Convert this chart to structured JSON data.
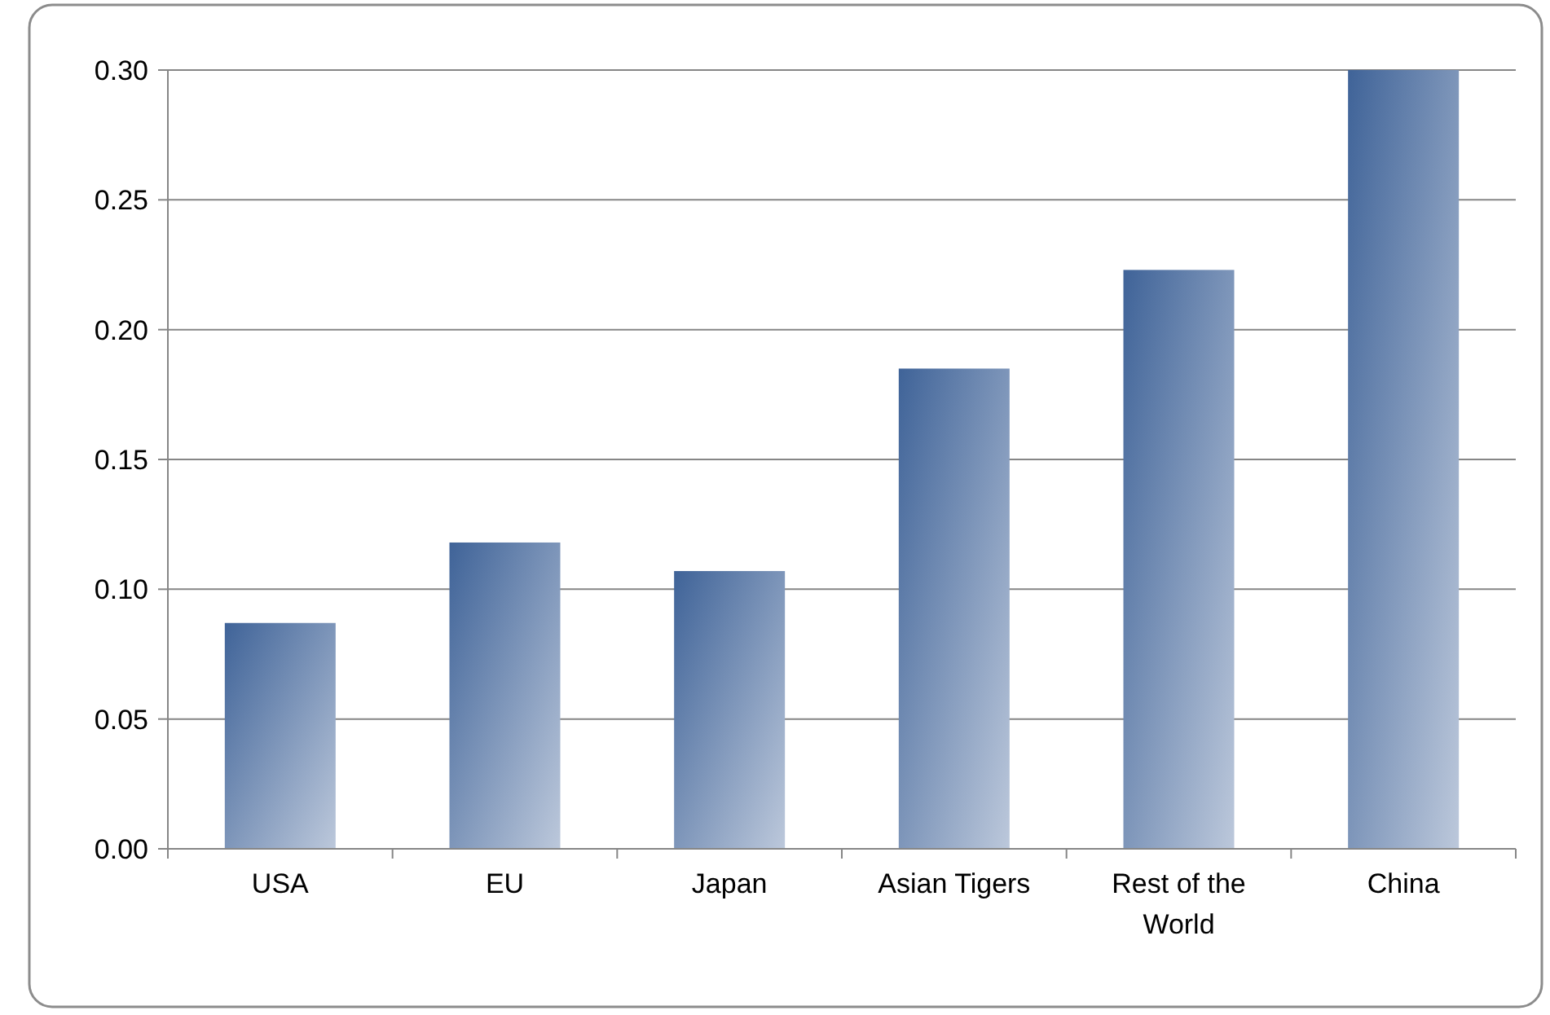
{
  "chart_data": {
    "type": "bar",
    "categories": [
      "USA",
      "EU",
      "Japan",
      "Asian Tigers",
      "Rest of the World",
      "China"
    ],
    "values": [
      0.087,
      0.118,
      0.107,
      0.185,
      0.223,
      0.3
    ],
    "color": "#3f6398",
    "ylim": [
      0,
      0.3
    ],
    "yticks": [
      {
        "value": 0,
        "label": "0.00"
      },
      {
        "value": 0.05,
        "label": "0.05"
      },
      {
        "value": 0.1,
        "label": "0.10"
      },
      {
        "value": 0.15,
        "label": "0.15"
      },
      {
        "value": 0.2,
        "label": "0.20"
      },
      {
        "value": 0.25,
        "label": "0.25"
      },
      {
        "value": 0.3,
        "label": "0.30"
      }
    ],
    "grid": "y"
  }
}
